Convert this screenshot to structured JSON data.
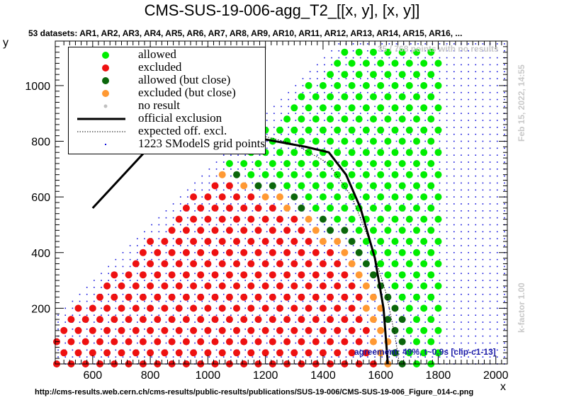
{
  "title": "CMS-SUS-19-006-agg_T2_[[x, y], [x, y]]",
  "subtitle": "53 datasets: AR1, AR2, AR3, AR4, AR5, AR6, AR7, AR8, AR9, AR10, AR11, AR12, AR13, AR14, AR15, AR16,  ...",
  "no_result_note": "35 / 768 points with no results",
  "timestamp": "Feb 15, 2022, 14:55",
  "kfactor": "k-factor 1.00",
  "agreement": "agreement: 49%, t~0.9s [clip-c1-13]",
  "source_url": "http://cms-results.web.cern.ch/cms-results/public-results/publications/SUS-19-006/CMS-SUS-19-006_Figure_014-c.png",
  "colors": {
    "allowed": "#00ee00",
    "excluded": "#ee1111",
    "allowed_close": "#0b660b",
    "excluded_close": "#ff9933",
    "no_result": "#c0c0c0",
    "grid_points": "#1010dd",
    "official": "#000000"
  },
  "legend": [
    {
      "key": "allowed",
      "label": "allowed",
      "symbol": "dot"
    },
    {
      "key": "excluded",
      "label": "excluded",
      "symbol": "dot"
    },
    {
      "key": "allowed_close",
      "label": "allowed (but close)",
      "symbol": "dot"
    },
    {
      "key": "excluded_close",
      "label": "excluded (but close)",
      "symbol": "dot"
    },
    {
      "key": "no_result",
      "label": "no result",
      "symbol": "smalldot"
    },
    {
      "key": "official",
      "label": "official exclusion",
      "symbol": "line"
    },
    {
      "key": "expected",
      "label": "expected off. excl.",
      "symbol": "dotted"
    },
    {
      "key": "grid_points",
      "label": "1223 SModelS grid points",
      "symbol": "tiny"
    }
  ],
  "chart_data": {
    "type": "scatter",
    "xlabel": "x",
    "ylabel": "y",
    "xlim": [
      470,
      2040
    ],
    "ylim": [
      0,
      1160
    ],
    "xticks": [
      600,
      800,
      1000,
      1200,
      1400,
      1600,
      1800,
      2000
    ],
    "yticks": [
      200,
      400,
      600,
      800,
      1000
    ],
    "official_exclusion": [
      [
        600,
        560
      ],
      [
        860,
        850
      ],
      [
        1000,
        850
      ],
      [
        1130,
        820
      ],
      [
        1340,
        780
      ],
      [
        1420,
        760
      ],
      [
        1480,
        680
      ],
      [
        1530,
        560
      ],
      [
        1580,
        380
      ],
      [
        1610,
        200
      ],
      [
        1625,
        0
      ]
    ],
    "expected_exclusion": [
      [
        600,
        560
      ],
      [
        870,
        860
      ],
      [
        1000,
        860
      ],
      [
        1150,
        830
      ],
      [
        1300,
        790
      ],
      [
        1420,
        720
      ],
      [
        1500,
        600
      ],
      [
        1570,
        420
      ],
      [
        1620,
        250
      ],
      [
        1650,
        100
      ],
      [
        1665,
        0
      ]
    ],
    "boundary": {
      "exp_a": [
        1640,
        740,
        700
      ],
      "off_a": [
        1625,
        780,
        720
      ],
      "near_band": 60,
      "gap_band": 120,
      "diag_offset": 0
    },
    "scan_grid": {
      "x_step": 50,
      "y_step": 40,
      "x_min": 475,
      "x_max": 1800,
      "y_min": 0,
      "y_max": 1120
    },
    "smodels_grid": {
      "x_step": 25,
      "y_step": 25,
      "x_min": 480,
      "x_max": 2030,
      "y_min": 0,
      "y_max": 1150,
      "count": 1223
    }
  }
}
